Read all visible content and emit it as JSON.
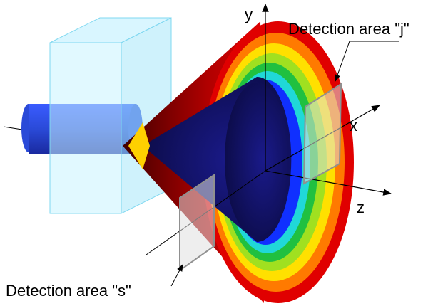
{
  "axes": {
    "y": "y",
    "x": "x",
    "z": "z"
  },
  "labels": [
    {
      "text": "Detection area \"j\""
    },
    {
      "text": "Detection area \"s\""
    }
  ]
}
